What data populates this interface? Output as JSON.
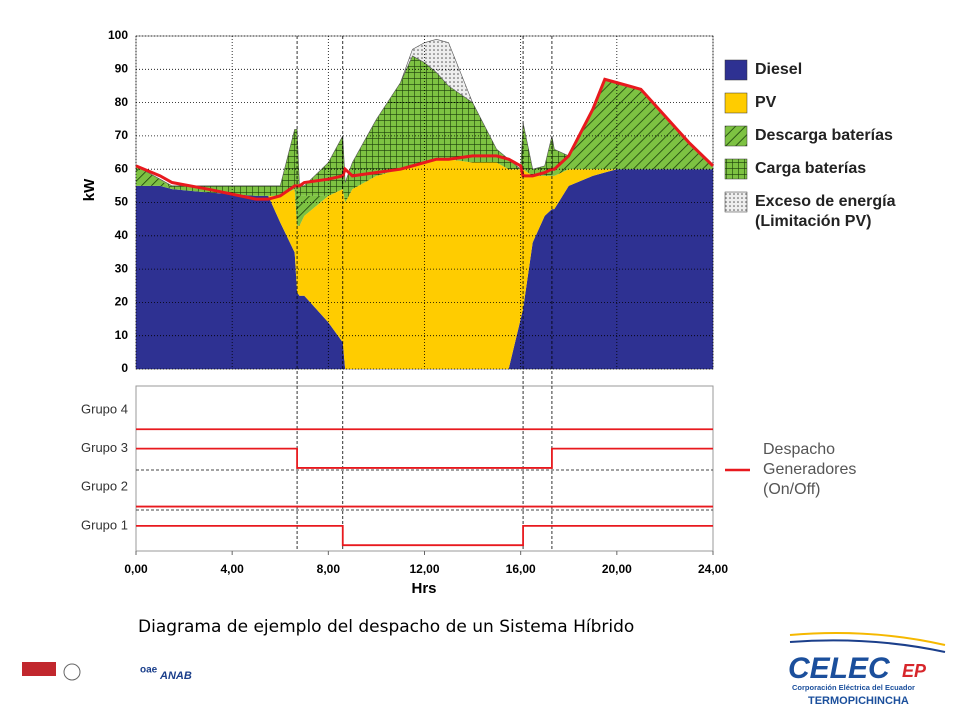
{
  "chart_data": [
    {
      "type": "area",
      "ylabel": "kW",
      "xlim": [
        0,
        24
      ],
      "ylim": [
        0,
        100
      ],
      "yticks": [
        0,
        10,
        20,
        30,
        40,
        50,
        60,
        70,
        80,
        90,
        100
      ],
      "xticks": [
        {
          "value": 0,
          "label": "0,00"
        },
        {
          "value": 4,
          "label": "4,00"
        },
        {
          "value": 8,
          "label": "8,00"
        },
        {
          "value": 12,
          "label": "12,00"
        },
        {
          "value": 16,
          "label": "16,00"
        },
        {
          "value": 20,
          "label": "20,00"
        },
        {
          "value": 24,
          "label": "24,00"
        }
      ],
      "grid": true,
      "vlines": [
        6.7,
        8.6,
        16.1,
        17.3
      ],
      "x": [
        0,
        1,
        1.5,
        3,
        5,
        5.5,
        6,
        6.6,
        6.7,
        6.8,
        7,
        8,
        8.6,
        8.7,
        9,
        10,
        11,
        11.5,
        12,
        12.5,
        13,
        14,
        15,
        15.5,
        16,
        16.1,
        16.5,
        17,
        17.3,
        17.4,
        18,
        19,
        19.5,
        20,
        21,
        22,
        23,
        24
      ],
      "series": [
        {
          "name": "Diesel",
          "color": "#2e3192",
          "values": [
            55,
            55,
            54,
            53,
            52,
            52,
            44,
            35,
            23,
            22,
            22,
            14,
            8,
            0,
            0,
            0,
            0,
            0,
            0,
            0,
            0,
            0,
            0,
            0,
            15,
            18,
            38,
            46,
            48,
            48,
            55,
            58,
            59,
            60,
            60,
            60,
            60,
            60
          ]
        },
        {
          "name": "PV",
          "color": "#ffcc00",
          "values": [
            0,
            0,
            0,
            0,
            0,
            0,
            8,
            19,
            20,
            21,
            24,
            38,
            46,
            50,
            54,
            58,
            60,
            61,
            62,
            63,
            63,
            62,
            62,
            60,
            45,
            42,
            20,
            12,
            10,
            10,
            5,
            2,
            1,
            0,
            0,
            0,
            0,
            0
          ]
        },
        {
          "name": "Descarga baterías",
          "color": "#6cbf3a",
          "pattern": "hatch",
          "values": [
            6,
            2,
            0,
            0,
            0,
            0,
            0,
            0,
            10,
            9,
            6,
            0,
            0,
            0,
            0,
            0,
            0,
            0,
            0,
            0,
            0,
            0,
            0,
            0,
            0,
            0,
            0,
            0,
            0,
            2,
            4,
            18,
            27,
            26,
            24,
            16,
            8,
            1
          ]
        },
        {
          "name": "Carga baterías",
          "color": "#6cbf3a",
          "pattern": "grid",
          "values": [
            0,
            0,
            1,
            2,
            3,
            3,
            3,
            18,
            19,
            3,
            3,
            10,
            16,
            6,
            8,
            17,
            26,
            33,
            30,
            26,
            22,
            18,
            4,
            3,
            0,
            14,
            2,
            3,
            12,
            6,
            0,
            0,
            0,
            0,
            0,
            0,
            0,
            0
          ]
        },
        {
          "name": "Exceso de energía (Limitación PV)",
          "color": "#d8d8d8",
          "pattern": "dots",
          "values": [
            0,
            0,
            0,
            0,
            0,
            0,
            0,
            0,
            0,
            0,
            0,
            0,
            0,
            0,
            0,
            0,
            0,
            2,
            6,
            10,
            13,
            0,
            0,
            0,
            0,
            0,
            0,
            0,
            0,
            0,
            0,
            0,
            0,
            0,
            0,
            0,
            0,
            0
          ]
        }
      ],
      "line_series": [
        {
          "color": "#e8191e",
          "values": [
            61,
            58,
            56,
            54,
            51,
            51,
            52,
            55,
            55,
            55,
            56,
            57,
            58,
            60,
            58,
            59,
            60,
            61,
            62,
            63,
            63,
            64,
            64,
            63,
            61,
            58,
            58,
            59,
            60,
            60,
            64,
            78,
            87,
            86,
            84,
            76,
            68,
            61
          ]
        }
      ]
    },
    {
      "type": "step",
      "xlabel": "Hrs",
      "xlim": [
        0,
        24
      ],
      "ylim": [
        0.35,
        4.62
      ],
      "yticks": [
        {
          "value": 1,
          "label": "Grupo 1"
        },
        {
          "value": 2,
          "label": "Grupo 2"
        },
        {
          "value": 3,
          "label": "Grupo 3"
        },
        {
          "value": 4,
          "label": "Grupo 4"
        }
      ],
      "xticks": [
        {
          "value": 0,
          "label": "0,00"
        },
        {
          "value": 4,
          "label": "4,00"
        },
        {
          "value": 8,
          "label": "8,00"
        },
        {
          "value": 12,
          "label": "12,00"
        },
        {
          "value": 16,
          "label": "16,00"
        },
        {
          "value": 20,
          "label": "20,00"
        },
        {
          "value": 24,
          "label": "24,00"
        }
      ],
      "legend_label": "Despacho Generadores (On/Off)",
      "color": "#e8191e",
      "series": [
        {
          "x": [
            0,
            24
          ],
          "values": [
            3.5,
            3.5
          ]
        },
        {
          "x": [
            0,
            6.7,
            6.7,
            17.3,
            17.3,
            24
          ],
          "values": [
            3,
            3,
            2.5,
            2.5,
            3,
            3
          ]
        },
        {
          "x": [
            0,
            24
          ],
          "values": [
            1.5,
            1.5
          ]
        },
        {
          "x": [
            0,
            8.6,
            8.6,
            16.1,
            16.1,
            24
          ],
          "values": [
            1,
            1,
            0.5,
            0.5,
            1,
            1
          ]
        }
      ]
    }
  ],
  "caption": "Diagrama de ejemplo del despacho de un Sistema Híbrido",
  "logo": {
    "name": "CELEC",
    "suffix": "EP",
    "subtitle": "Corporación Eléctrica del Ecuador",
    "unit": "TERMOPICHINCHA"
  },
  "certifications": [
    "ANAB",
    "oae"
  ]
}
